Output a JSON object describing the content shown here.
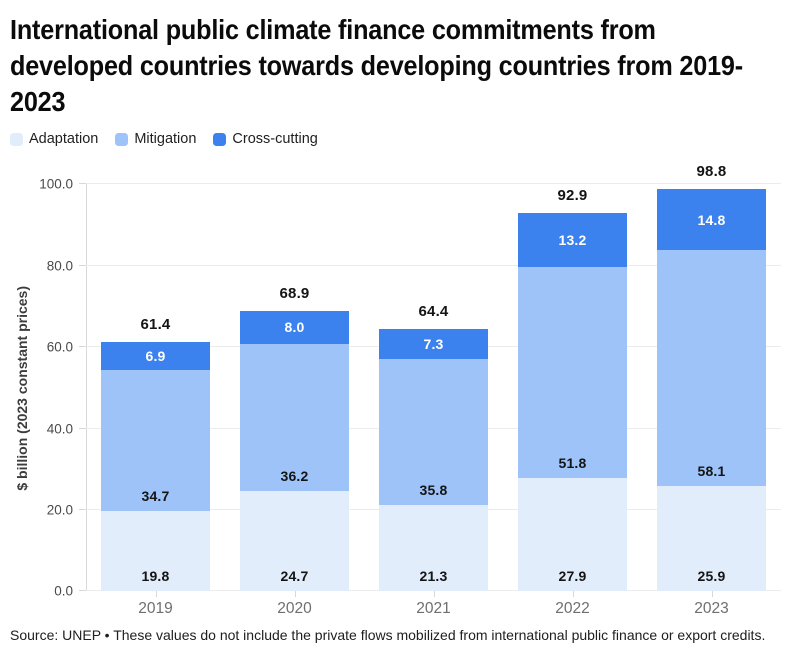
{
  "title": "International public climate finance commitments from developed countries towards developing countries from 2019-2023",
  "footer": "Source: UNEP • These values do not include the private flows mobilized from international public finance or export credits.",
  "chart_data": {
    "type": "bar",
    "stacked": true,
    "title": "International public climate finance commitments from developed countries towards developing countries from 2019-2023",
    "categories": [
      "2019",
      "2020",
      "2021",
      "2022",
      "2023"
    ],
    "series": [
      {
        "name": "Adaptation",
        "color": "#e2edfc",
        "label_color": "#141414",
        "label_position": "bottom",
        "values": [
          19.8,
          24.7,
          21.3,
          27.9,
          25.9
        ]
      },
      {
        "name": "Mitigation",
        "color": "#9dc3f8",
        "label_color": "#141414",
        "label_position": "bottom",
        "values": [
          34.7,
          36.2,
          35.8,
          51.8,
          58.1
        ]
      },
      {
        "name": "Cross-cutting",
        "color": "#3b82ef",
        "label_color": "#ffffff",
        "label_position": "center",
        "values": [
          6.9,
          8.0,
          7.3,
          13.2,
          14.8
        ]
      }
    ],
    "totals": [
      61.4,
      68.9,
      64.4,
      92.9,
      98.8
    ],
    "xlabel": "",
    "ylabel": "$ billion (2023 constant prices)",
    "ylim": [
      0,
      100
    ],
    "yticks": [
      0,
      20,
      40,
      60,
      80,
      100
    ],
    "ytick_labels": [
      "0.0",
      "20.0",
      "40.0",
      "60.0",
      "80.0",
      "100.0"
    ],
    "grid": true,
    "legend_position": "top",
    "value_label_decimals": 1
  }
}
